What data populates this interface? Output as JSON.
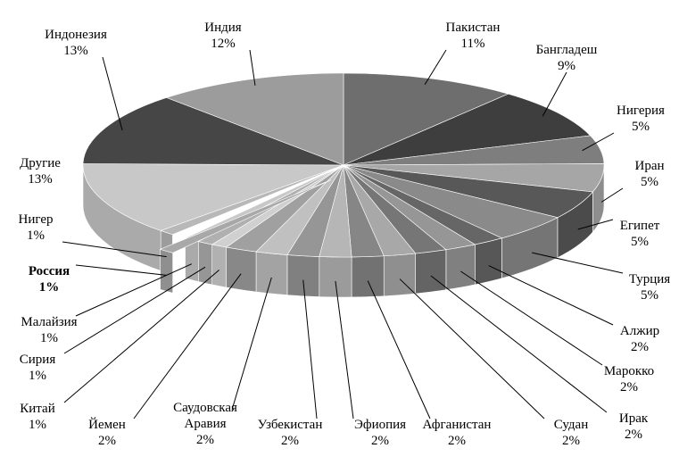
{
  "chart_data": {
    "type": "pie3d",
    "categories": [
      "Пакистан",
      "Бангладеш",
      "Нигерия",
      "Иран",
      "Египет",
      "Турция",
      "Алжир",
      "Марокко",
      "Ирак",
      "Судан",
      "Афганистан",
      "Эфиопия",
      "Узбекистан",
      "Саудовская Аравия",
      "Йемен",
      "Китай",
      "Сирия",
      "Малайзия",
      "Россия",
      "Нигер",
      "Другие",
      "Индонезия",
      "Индия"
    ],
    "values": [
      11,
      9,
      5,
      5,
      5,
      5,
      2,
      2,
      2,
      2,
      2,
      2,
      2,
      2,
      2,
      1,
      1,
      1,
      1,
      1,
      13,
      13,
      12
    ],
    "value_labels": [
      "11%",
      "9%",
      "5%",
      "5%",
      "5%",
      "5%",
      "2%",
      "2%",
      "2%",
      "2%",
      "2%",
      "2%",
      "2%",
      "2%",
      "2%",
      "1%",
      "1%",
      "1%",
      "1%",
      "1%",
      "13%",
      "13%",
      "12%"
    ],
    "colors": [
      "#6e6e6e",
      "#3e3e3e",
      "#7e7e7e",
      "#a6a6a6",
      "#585858",
      "#8a8a8a",
      "#666666",
      "#969696",
      "#767676",
      "#a8a8a8",
      "#868686",
      "#b6b6b6",
      "#969696",
      "#c0c0c0",
      "#a0a0a0",
      "#d0d0d0",
      "#b0b0b0",
      "#c8c8c8",
      "#a8a8a8",
      "#b8b8b8",
      "#c8c8c8",
      "#464646",
      "#9c9c9c"
    ],
    "highlight": "Россия"
  }
}
